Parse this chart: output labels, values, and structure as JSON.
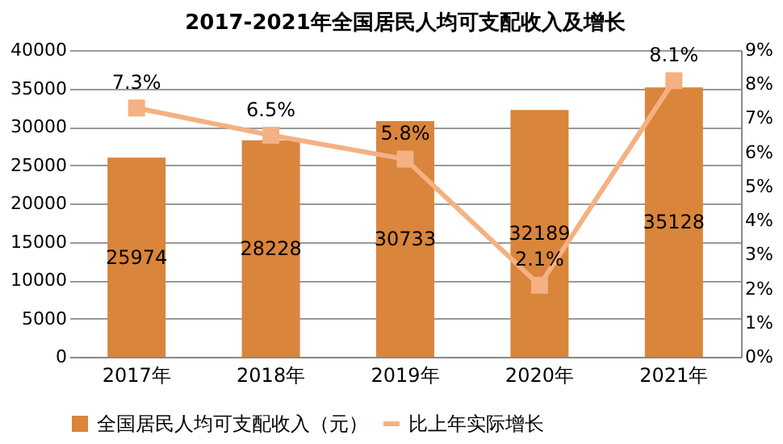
{
  "chart_data": {
    "type": "bar",
    "title": "2017-2021年全国居民人均可支配收入及增长",
    "categories": [
      "2017年",
      "2018年",
      "2019年",
      "2020年",
      "2021年"
    ],
    "series": [
      {
        "name": "全国居民人均可支配收入（元）",
        "color": "#d9853b",
        "values": [
          25974,
          28228,
          30733,
          32189,
          35128
        ]
      },
      {
        "name": "比上年实际增长",
        "type": "line",
        "axis": "y2",
        "color": "#f4b183",
        "marker": "square",
        "values": [
          7.3,
          6.5,
          5.8,
          2.1,
          8.1
        ],
        "value_labels": [
          "7.3%",
          "6.5%",
          "5.8%",
          "2.1%",
          "8.1%"
        ]
      }
    ],
    "ylim": [
      0,
      40000
    ],
    "yticks": [
      0,
      5000,
      10000,
      15000,
      20000,
      25000,
      30000,
      35000,
      40000
    ],
    "y2lim": [
      0,
      9
    ],
    "y2ticks": [
      {
        "value": 0,
        "label": "0%"
      },
      {
        "value": 1,
        "label": "1%"
      },
      {
        "value": 2,
        "label": "2%"
      },
      {
        "value": 3,
        "label": "3%"
      },
      {
        "value": 4,
        "label": "4%"
      },
      {
        "value": 5,
        "label": "5%"
      },
      {
        "value": 6,
        "label": "6%"
      },
      {
        "value": 7,
        "label": "7%"
      },
      {
        "value": 8,
        "label": "8%"
      },
      {
        "value": 9,
        "label": "9%"
      }
    ],
    "grid": "y",
    "legend": "bottom",
    "data_labels": true
  }
}
